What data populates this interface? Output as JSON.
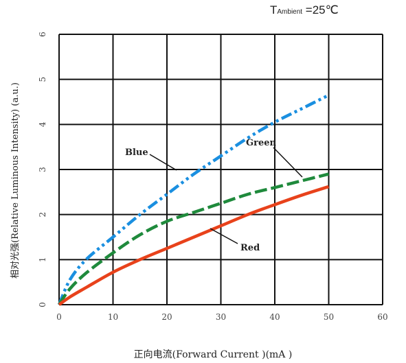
{
  "condition": {
    "prefix": "T",
    "subscript": "Ambient",
    "suffix": " =25℃"
  },
  "chart_data": {
    "type": "line",
    "xlabel": "正向电流(Forward Current )(mA )",
    "ylabel": "相对光强(Relative Luminous Intensity) (a.u.)",
    "xlim": [
      0,
      60
    ],
    "ylim": [
      0,
      6
    ],
    "xticks": [
      0,
      10,
      20,
      30,
      40,
      50,
      60
    ],
    "yticks": [
      0,
      1,
      2,
      3,
      4,
      5,
      6
    ],
    "grid": true,
    "series": [
      {
        "name": "Blue",
        "color": "#1a8fe0",
        "style": "dash-dot-dot",
        "x": [
          0,
          2,
          5,
          10,
          15,
          20,
          25,
          30,
          35,
          40,
          45,
          50
        ],
        "y": [
          0,
          0.55,
          1.0,
          1.5,
          2.0,
          2.45,
          2.9,
          3.3,
          3.7,
          4.05,
          4.35,
          4.65
        ]
      },
      {
        "name": "Green",
        "color": "#1f8a3c",
        "style": "dash",
        "x": [
          0,
          2,
          5,
          10,
          15,
          20,
          25,
          30,
          35,
          40,
          45,
          50
        ],
        "y": [
          0,
          0.35,
          0.7,
          1.15,
          1.55,
          1.85,
          2.05,
          2.25,
          2.45,
          2.6,
          2.75,
          2.9
        ]
      },
      {
        "name": "Red",
        "color": "#e8421b",
        "style": "solid",
        "x": [
          0,
          2,
          5,
          10,
          15,
          20,
          25,
          30,
          35,
          40,
          45,
          50
        ],
        "y": [
          0,
          0.17,
          0.38,
          0.72,
          1.0,
          1.25,
          1.5,
          1.75,
          2.0,
          2.22,
          2.43,
          2.62
        ]
      }
    ]
  }
}
